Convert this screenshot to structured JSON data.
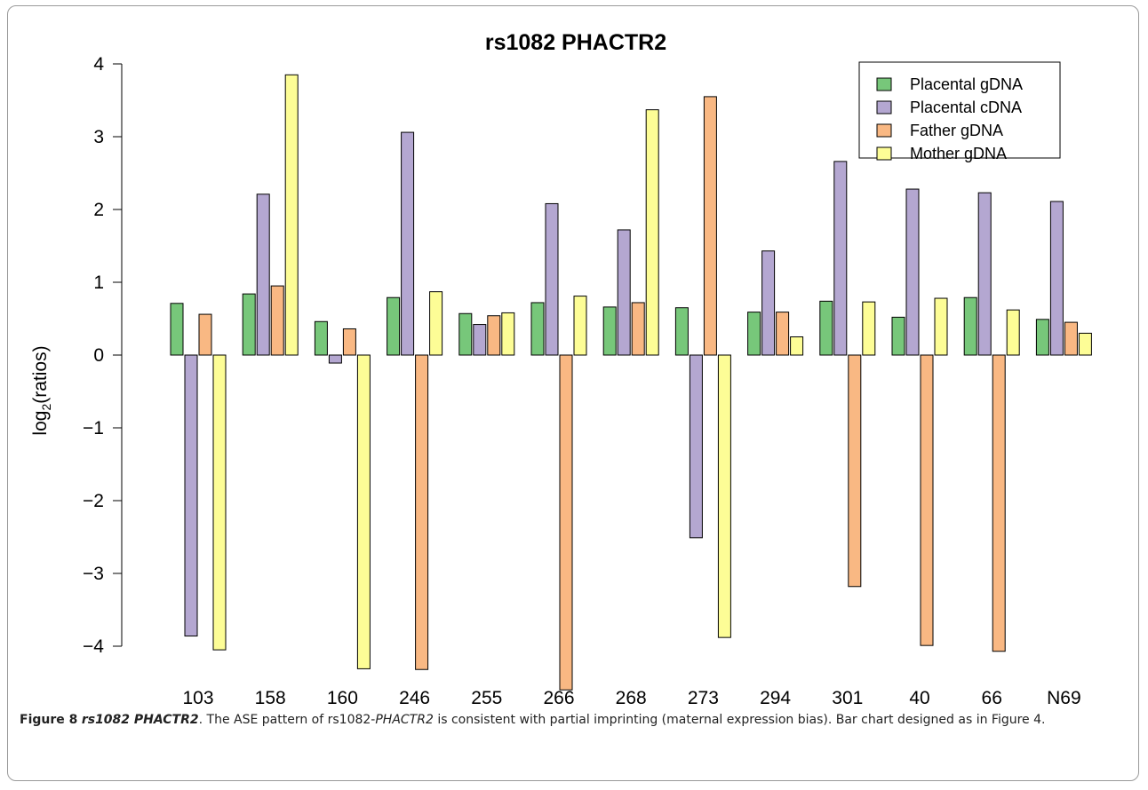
{
  "chart_data": {
    "type": "bar",
    "title": "rs1082 PHACTR2",
    "xlabel": "",
    "ylabel_main": "log",
    "ylabel_sub": "2",
    "ylabel_tail": "(ratios)",
    "ylim": [
      -4.6,
      4.1
    ],
    "yticks": [
      {
        "value": 4,
        "label": "4"
      },
      {
        "value": 3,
        "label": "3"
      },
      {
        "value": 2,
        "label": "2"
      },
      {
        "value": 1,
        "label": "1"
      },
      {
        "value": 0,
        "label": "0"
      },
      {
        "value": -1,
        "label": "−1"
      },
      {
        "value": -2,
        "label": "−2"
      },
      {
        "value": -3,
        "label": "−3"
      },
      {
        "value": -4,
        "label": "−4"
      }
    ],
    "categories": [
      "103",
      "158",
      "160",
      "246",
      "255",
      "266",
      "268",
      "273",
      "294",
      "301",
      "40",
      "66",
      "N69"
    ],
    "legend_position": "top-right",
    "series": [
      {
        "name": "Placental gDNA",
        "color": "#77c77a",
        "values": [
          0.71,
          0.84,
          0.46,
          0.79,
          0.57,
          0.72,
          0.66,
          0.65,
          0.59,
          0.74,
          0.52,
          0.79,
          0.49
        ]
      },
      {
        "name": "Placental cDNA",
        "color": "#b4a7d1",
        "values": [
          -3.86,
          2.21,
          -0.11,
          3.06,
          0.42,
          2.08,
          1.72,
          -2.51,
          1.43,
          2.66,
          2.28,
          2.23,
          2.11
        ]
      },
      {
        "name": "Father gDNA",
        "color": "#f9b883",
        "values": [
          0.56,
          0.95,
          0.36,
          -4.32,
          0.54,
          -4.6,
          0.72,
          3.55,
          0.59,
          -3.18,
          -3.99,
          -4.07,
          0.45
        ]
      },
      {
        "name": "Mother gDNA",
        "color": "#fdfd96",
        "values": [
          -4.05,
          3.85,
          -4.31,
          0.87,
          0.58,
          0.81,
          3.37,
          -3.88,
          0.25,
          0.73,
          0.78,
          0.62,
          0.3
        ]
      }
    ]
  },
  "caption": {
    "label": "Figure 8",
    "gene_label": "rs1082 PHACTR2",
    "text_before": ". The ASE pattern of rs1082-",
    "gene_inline": "PHACTR2",
    "text_after": " is consistent with partial imprinting (maternal expression bias). Bar chart designed as in Figure 4."
  }
}
